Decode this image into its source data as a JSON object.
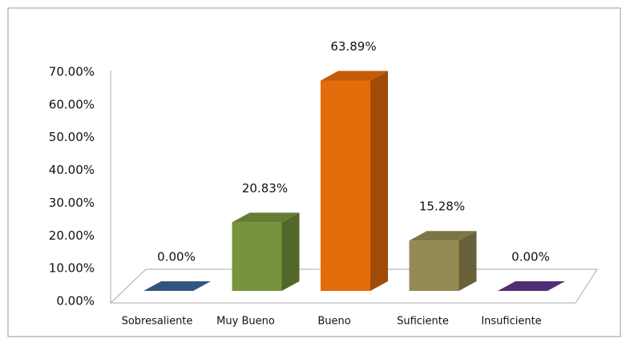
{
  "chart_data": {
    "type": "bar3d",
    "categories": [
      "Sobresaliente",
      "Muy Bueno",
      "Bueno",
      "Suficiente",
      "Insuficiente"
    ],
    "values": [
      0,
      20.83,
      63.89,
      15.28,
      0
    ],
    "value_labels": [
      "0.00%",
      "20.83%",
      "63.89%",
      "15.28%",
      "0.00%"
    ],
    "colors": [
      "#3b6496",
      "#77933c",
      "#e46c0a",
      "#948a54",
      "#60358a"
    ],
    "ylim": [
      0,
      70
    ],
    "yticks": [
      {
        "value": 0,
        "label": "0.00%"
      },
      {
        "value": 10,
        "label": "10.00%"
      },
      {
        "value": 20,
        "label": "20.00%"
      },
      {
        "value": 30,
        "label": "30.00%"
      },
      {
        "value": 40,
        "label": "40.00%"
      },
      {
        "value": 50,
        "label": "50.00%"
      },
      {
        "value": 60,
        "label": "60.00%"
      },
      {
        "value": 70,
        "label": "70.00%"
      }
    ]
  }
}
